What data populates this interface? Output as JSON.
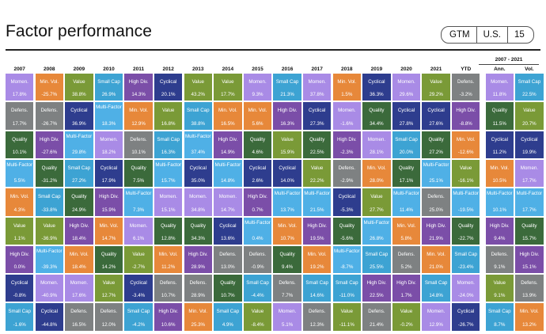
{
  "title": "Factor performance",
  "tags": [
    "GTM",
    "U.S.",
    "15"
  ],
  "colors": {
    "Momen.": "#A98BE6",
    "Min. Vol.": "#E7883A",
    "Value": "#7A9A37",
    "Small Cap": "#3DA3D3",
    "High Div.": "#7B4EA8",
    "Cyclical": "#2E3D8E",
    "Defens.": "#7E8182",
    "Quality": "#3B6A3B",
    "Multi-Factor": "#4FB0E6"
  },
  "chart_data": {
    "type": "table",
    "columns": [
      "2007",
      "2008",
      "2009",
      "2010",
      "2011",
      "2012",
      "2013",
      "2014",
      "2015",
      "2016",
      "2017",
      "2018",
      "2019",
      "2020",
      "2021",
      "YTD",
      "Ann.",
      "Vol."
    ],
    "summary_header": "2007 - 2021",
    "rows": [
      [
        [
          "Momen.",
          "17.8%"
        ],
        [
          "Min. Vol.",
          "-25.7%"
        ],
        [
          "Value",
          "38.8%"
        ],
        [
          "Small Cap",
          "26.9%"
        ],
        [
          "High Div.",
          "14.3%"
        ],
        [
          "Cyclical",
          "20.1%"
        ],
        [
          "Value",
          "43.2%"
        ],
        [
          "Value",
          "17.7%"
        ],
        [
          "Momen.",
          "9.3%"
        ],
        [
          "Small Cap",
          "21.3%"
        ],
        [
          "Momen.",
          "37.8%"
        ],
        [
          "Min. Vol.",
          "1.5%"
        ],
        [
          "Cyclical",
          "36.3%"
        ],
        [
          "Momen.",
          "29.6%"
        ],
        [
          "Value",
          "29.2%"
        ],
        [
          "Defens.",
          "-3.2%"
        ],
        [
          "Momen.",
          "11.8%"
        ],
        [
          "Small Cap",
          "22.5%"
        ]
      ],
      [
        [
          "Defens.",
          "17.7%"
        ],
        [
          "Defens.",
          "-26.7%"
        ],
        [
          "Cyclical",
          "36.9%"
        ],
        [
          "Multi-Factor",
          "18.3%"
        ],
        [
          "Min. Vol.",
          "12.9%"
        ],
        [
          "Value",
          "16.8%"
        ],
        [
          "Small Cap",
          "38.8%"
        ],
        [
          "Min. Vol.",
          "16.5%"
        ],
        [
          "Min. Vol.",
          "5.6%"
        ],
        [
          "High Div.",
          "16.3%"
        ],
        [
          "Cyclical",
          "27.3%"
        ],
        [
          "Momen.",
          "-1.6%"
        ],
        [
          "Quality",
          "34.4%"
        ],
        [
          "Cyclical",
          "27.8%"
        ],
        [
          "Cyclical",
          "27.6%"
        ],
        [
          "High Div.",
          "-8.8%"
        ],
        [
          "Quality",
          "11.5%"
        ],
        [
          "Value",
          "20.7%"
        ]
      ],
      [
        [
          "Quality",
          "10.1%"
        ],
        [
          "High Div.",
          "-27.6%"
        ],
        [
          "Multi-Factor",
          "29.8%"
        ],
        [
          "Momen.",
          "18.2%"
        ],
        [
          "Defens.",
          "10.1%"
        ],
        [
          "Small Cap",
          "16.3%"
        ],
        [
          "Multi-Factor",
          "37.4%"
        ],
        [
          "High Div.",
          "14.9%"
        ],
        [
          "Quality",
          "4.6%"
        ],
        [
          "Value",
          "15.9%"
        ],
        [
          "Quality",
          "22.5%"
        ],
        [
          "High Div.",
          "-2.3%"
        ],
        [
          "Momen.",
          "28.1%"
        ],
        [
          "Small Cap",
          "20.0%"
        ],
        [
          "Quality",
          "27.2%"
        ],
        [
          "Min. Vol.",
          "-12.6%"
        ],
        [
          "Cyclical",
          "11.2%"
        ],
        [
          "Cyclical",
          "19.9%"
        ]
      ],
      [
        [
          "Multi-Factor",
          "5.5%"
        ],
        [
          "Quality",
          "-31.2%"
        ],
        [
          "Small Cap",
          "27.2%"
        ],
        [
          "Cyclical",
          "17.9%"
        ],
        [
          "Quality",
          "7.5%"
        ],
        [
          "Multi-Factor",
          "15.7%"
        ],
        [
          "Cyclical",
          "35.0%"
        ],
        [
          "Multi-Factor",
          "14.8%"
        ],
        [
          "Cyclical",
          "2.6%"
        ],
        [
          "Cyclical",
          "14.0%"
        ],
        [
          "Value",
          "22.2%"
        ],
        [
          "Defens.",
          "-2.9%"
        ],
        [
          "Min. Vol.",
          "28.0%"
        ],
        [
          "Quality",
          "17.1%"
        ],
        [
          "Multi-Factor",
          "25.1%"
        ],
        [
          "Value",
          "-16.1%"
        ],
        [
          "Min. Vol.",
          "10.5%"
        ],
        [
          "Momen.",
          "17.7%"
        ]
      ],
      [
        [
          "Min. Vol.",
          "4.3%"
        ],
        [
          "Small Cap",
          "-33.8%"
        ],
        [
          "Quality",
          "24.9%"
        ],
        [
          "High Div.",
          "15.9%"
        ],
        [
          "Multi-Factor",
          "7.3%"
        ],
        [
          "Momen.",
          "15.1%"
        ],
        [
          "Momen.",
          "34.8%"
        ],
        [
          "Momen.",
          "14.7%"
        ],
        [
          "High Div.",
          "0.7%"
        ],
        [
          "Multi-Factor",
          "13.7%"
        ],
        [
          "Multi-Factor",
          "21.5%"
        ],
        [
          "Cyclical",
          "-5.3%"
        ],
        [
          "Value",
          "27.7%"
        ],
        [
          "Multi-Factor",
          "11.4%"
        ],
        [
          "Defens.",
          "25.0%"
        ],
        [
          "Multi-Factor",
          "-19.5%"
        ],
        [
          "Multi-Factor",
          "10.1%"
        ],
        [
          "Multi-Factor",
          "17.7%"
        ]
      ],
      [
        [
          "Value",
          "1.1%"
        ],
        [
          "Value",
          "-36.9%"
        ],
        [
          "High Div.",
          "18.4%"
        ],
        [
          "Min. Vol.",
          "14.7%"
        ],
        [
          "Momen.",
          "6.1%"
        ],
        [
          "Quality",
          "12.8%"
        ],
        [
          "Quality",
          "34.3%"
        ],
        [
          "Cyclical",
          "13.6%"
        ],
        [
          "Multi-Factor",
          "0.4%"
        ],
        [
          "Min. Vol.",
          "10.7%"
        ],
        [
          "High Div.",
          "19.5%"
        ],
        [
          "Quality",
          "-5.6%"
        ],
        [
          "Multi-Factor",
          "26.8%"
        ],
        [
          "Min. Vol.",
          "5.8%"
        ],
        [
          "High Div.",
          "21.9%"
        ],
        [
          "Quality",
          "-22.7%"
        ],
        [
          "High Div.",
          "9.4%"
        ],
        [
          "Quality",
          "15.7%"
        ]
      ],
      [
        [
          "High Div.",
          "0.0%"
        ],
        [
          "Multi-Factor",
          "-39.3%"
        ],
        [
          "Min. Vol.",
          "18.4%"
        ],
        [
          "Quality",
          "14.2%"
        ],
        [
          "Value",
          "-2.7%"
        ],
        [
          "Min. Vol.",
          "11.2%"
        ],
        [
          "High Div.",
          "28.9%"
        ],
        [
          "Defens.",
          "13.0%"
        ],
        [
          "Defens.",
          "-0.9%"
        ],
        [
          "Quality",
          "9.4%"
        ],
        [
          "Min. Vol.",
          "19.2%"
        ],
        [
          "Multi-Factor",
          "-8.7%"
        ],
        [
          "Small Cap",
          "25.5%"
        ],
        [
          "Defens.",
          "5.2%"
        ],
        [
          "Min. Vol.",
          "21.0%"
        ],
        [
          "Small Cap",
          "-23.4%"
        ],
        [
          "Defens.",
          "9.1%"
        ],
        [
          "High Div.",
          "15.1%"
        ]
      ],
      [
        [
          "Cyclical",
          "-0.8%"
        ],
        [
          "Momen.",
          "-40.9%"
        ],
        [
          "Momen.",
          "17.6%"
        ],
        [
          "Value",
          "12.7%"
        ],
        [
          "Cyclical",
          "-3.4%"
        ],
        [
          "Defens.",
          "10.7%"
        ],
        [
          "Defens.",
          "28.9%"
        ],
        [
          "Quality",
          "10.7%"
        ],
        [
          "Small Cap",
          "-4.4%"
        ],
        [
          "Defens.",
          "7.7%"
        ],
        [
          "Small Cap",
          "14.6%"
        ],
        [
          "Small Cap",
          "-11.0%"
        ],
        [
          "High Div.",
          "22.5%"
        ],
        [
          "High Div.",
          "1.7%"
        ],
        [
          "Small Cap",
          "14.8%"
        ],
        [
          "Momen.",
          "-24.0%"
        ],
        [
          "Value",
          "9.1%"
        ],
        [
          "Defens.",
          "13.9%"
        ]
      ],
      [
        [
          "Small Cap",
          "-1.6%"
        ],
        [
          "Cyclical",
          "-44.8%"
        ],
        [
          "Defens.",
          "16.5%"
        ],
        [
          "Defens.",
          "12.0%"
        ],
        [
          "Small Cap",
          "-4.2%"
        ],
        [
          "High Div.",
          "10.6%"
        ],
        [
          "Min. Vol.",
          "25.3%"
        ],
        [
          "Small Cap",
          "4.9%"
        ],
        [
          "Value",
          "-8.4%"
        ],
        [
          "Momen.",
          "5.1%"
        ],
        [
          "Defens.",
          "12.3%"
        ],
        [
          "Value",
          "-11.1%"
        ],
        [
          "Defens.",
          "21.4%"
        ],
        [
          "Value",
          "-0.2%"
        ],
        [
          "Momen.",
          "12.9%"
        ],
        [
          "Cyclical",
          "-26.7%"
        ],
        [
          "Small Cap",
          "8.7%"
        ],
        [
          "Min. Vol.",
          "13.2%"
        ]
      ]
    ]
  }
}
